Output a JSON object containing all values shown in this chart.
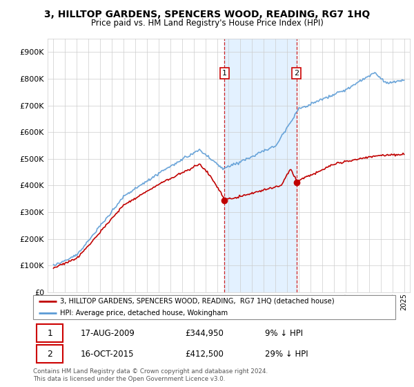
{
  "title": "3, HILLTOP GARDENS, SPENCERS WOOD, READING, RG7 1HQ",
  "subtitle": "Price paid vs. HM Land Registry's House Price Index (HPI)",
  "hpi_color": "#5b9bd5",
  "price_color": "#c00000",
  "sale1_date_num": 2009.63,
  "sale1_price": 344950,
  "sale2_date_num": 2015.79,
  "sale2_price": 412500,
  "ylim_min": 0,
  "ylim_max": 950000,
  "background_color": "#ffffff",
  "grid_color": "#cccccc",
  "shaded_region_color": "#ddeeff",
  "footer": "Contains HM Land Registry data © Crown copyright and database right 2024.\nThis data is licensed under the Open Government Licence v3.0.",
  "legend_line1": "3, HILLTOP GARDENS, SPENCERS WOOD, READING,  RG7 1HQ (detached house)",
  "legend_line2": "HPI: Average price, detached house, Wokingham"
}
